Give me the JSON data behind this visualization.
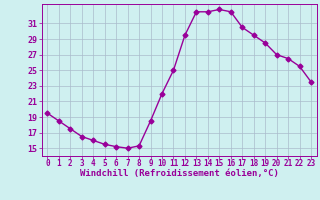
{
  "x": [
    0,
    1,
    2,
    3,
    4,
    5,
    6,
    7,
    8,
    9,
    10,
    11,
    12,
    13,
    14,
    15,
    16,
    17,
    18,
    19,
    20,
    21,
    22,
    23
  ],
  "y": [
    19.5,
    18.5,
    17.5,
    16.5,
    16.0,
    15.5,
    15.2,
    15.0,
    15.3,
    18.5,
    22.0,
    25.0,
    29.5,
    32.5,
    32.5,
    32.8,
    32.5,
    30.5,
    29.5,
    28.5,
    27.0,
    26.5,
    25.5,
    23.5
  ],
  "line_color": "#990099",
  "marker": "D",
  "markersize": 2.5,
  "linewidth": 1.0,
  "bg_color": "#cff0f0",
  "grid_color": "#aabbcc",
  "xlabel": "Windchill (Refroidissement éolien,°C)",
  "xlabel_color": "#990099",
  "tick_color": "#990099",
  "xlim": [
    -0.5,
    23.5
  ],
  "ylim": [
    14.0,
    33.5
  ],
  "yticks": [
    15,
    17,
    19,
    21,
    23,
    25,
    27,
    29,
    31
  ],
  "xticks": [
    0,
    1,
    2,
    3,
    4,
    5,
    6,
    7,
    8,
    9,
    10,
    11,
    12,
    13,
    14,
    15,
    16,
    17,
    18,
    19,
    20,
    21,
    22,
    23
  ],
  "fontsize_xlabel": 6.5,
  "fontsize_ticks": 6.5
}
